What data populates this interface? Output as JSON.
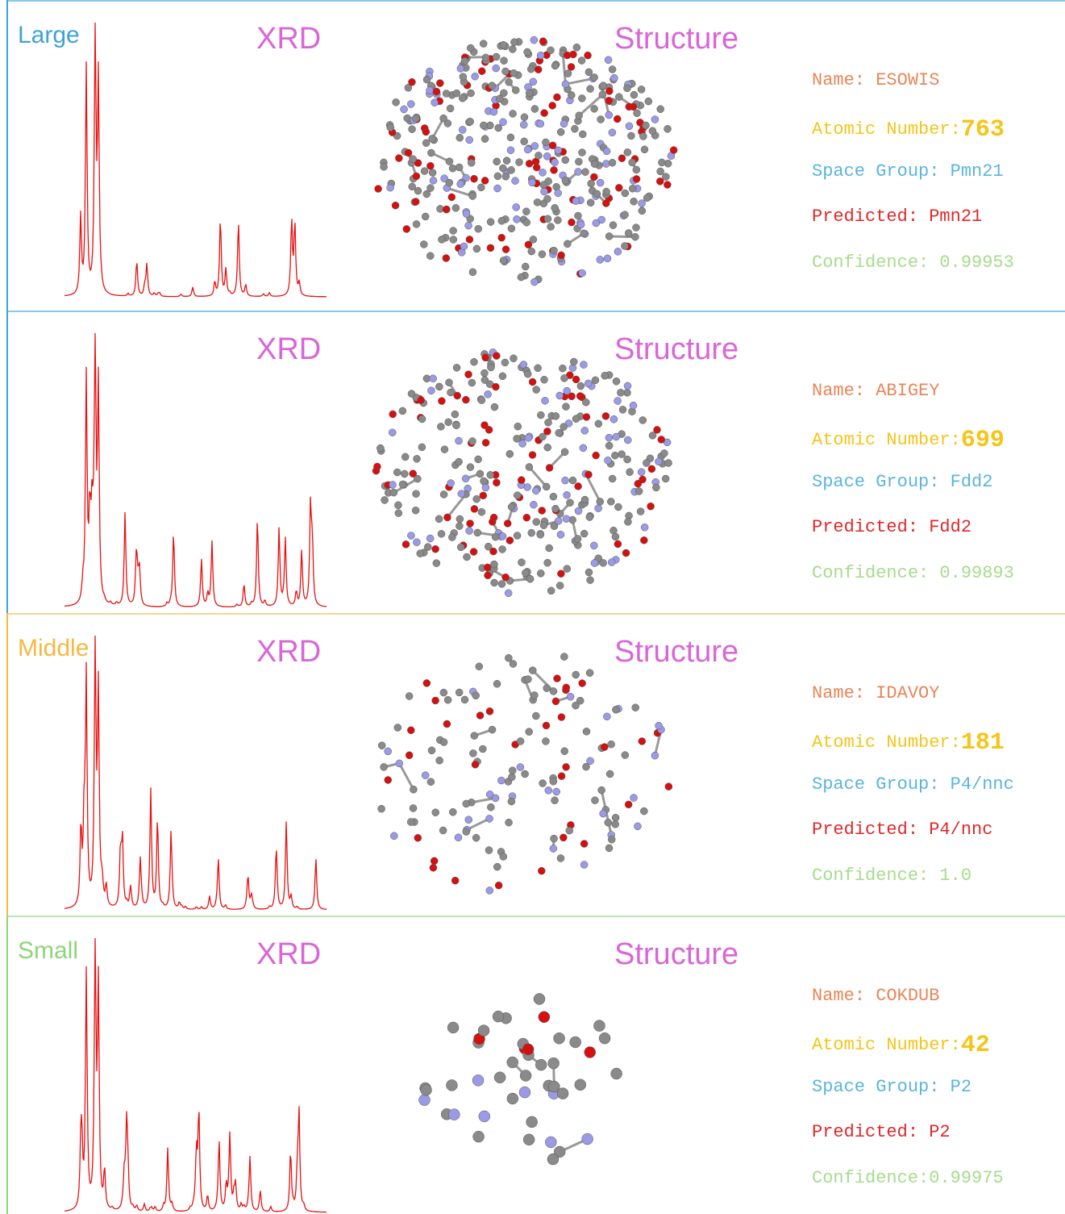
{
  "panels": [
    {
      "size_label": "Large",
      "xrd_label": "XRD",
      "structure_label": "Structure",
      "name": "Name: ESOWIS",
      "atomic_label": "Atomic Number:",
      "atomic_number": "763",
      "space_group": "Space Group: Pmn21",
      "predicted": "Predicted: Pmn21",
      "confidence": "Confidence: 0.99953"
    },
    {
      "xrd_label": "XRD",
      "structure_label": "Structure",
      "name": "Name: ABIGEY",
      "atomic_label": "Atomic Number:",
      "atomic_number": "699",
      "space_group": "Space Group: Fdd2",
      "predicted": "Predicted: Fdd2",
      "confidence": "Confidence: 0.99893"
    },
    {
      "size_label": "Middle",
      "xrd_label": "XRD",
      "structure_label": "Structure",
      "name": "Name: IDAVOY",
      "atomic_label": "Atomic Number:",
      "atomic_number": "181",
      "space_group": "Space Group: P4/nnc",
      "predicted": "Predicted: P4/nnc",
      "confidence": "Confidence: 1.0"
    },
    {
      "size_label": "Small",
      "xrd_label": "XRD",
      "structure_label": "Structure",
      "name": "Name: COKDUB",
      "atomic_label": "Atomic Number:",
      "atomic_number": "42",
      "space_group": "Space Group: P2",
      "predicted": "Predicted: P2",
      "confidence": "Confidence:0.99975"
    }
  ]
}
